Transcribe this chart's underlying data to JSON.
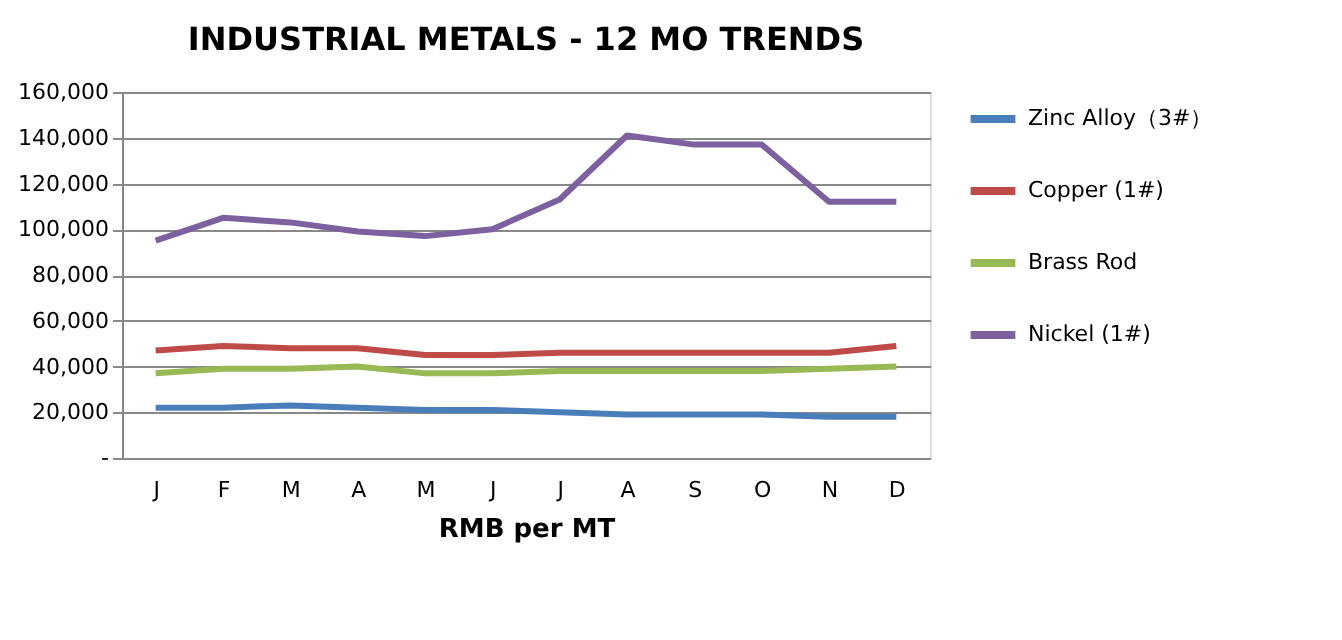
{
  "chart_data": {
    "type": "line",
    "title": "INDUSTRIAL METALS - 12 MO TRENDS",
    "xlabel": "RMB per MT",
    "categories": [
      "J",
      "F",
      "M",
      "A",
      "M",
      "J",
      "J",
      "A",
      "S",
      "O",
      "N",
      "D"
    ],
    "series": [
      {
        "name": "Zinc Alloy（3#）",
        "color": "#4a7ebb",
        "values": [
          22000,
          22000,
          23000,
          22000,
          21000,
          21000,
          20000,
          19000,
          19000,
          19000,
          18000,
          18000
        ]
      },
      {
        "name": "Copper (1#)",
        "color": "#be4b48",
        "values": [
          47000,
          49000,
          48000,
          48000,
          45000,
          45000,
          46000,
          46000,
          46000,
          46000,
          46000,
          49000
        ]
      },
      {
        "name": "Brass Rod",
        "color": "#98b954",
        "values": [
          37000,
          39000,
          39000,
          40000,
          37000,
          37000,
          38000,
          38000,
          38000,
          38000,
          39000,
          40000
        ]
      },
      {
        "name": "Nickel (1#)",
        "color": "#7d60a0",
        "values": [
          95000,
          105000,
          103000,
          99000,
          97000,
          100000,
          113000,
          141000,
          137000,
          137000,
          112000,
          112000
        ]
      }
    ],
    "ylim": [
      0,
      160000
    ],
    "yticks": [
      {
        "value": 0,
        "label": "-"
      },
      {
        "value": 20000,
        "label": "20,000"
      },
      {
        "value": 40000,
        "label": "40,000"
      },
      {
        "value": 60000,
        "label": "60,000"
      },
      {
        "value": 80000,
        "label": "80,000"
      },
      {
        "value": 100000,
        "label": "100,000"
      },
      {
        "value": 120000,
        "label": "120,000"
      },
      {
        "value": 140000,
        "label": "140,000"
      },
      {
        "value": 160000,
        "label": "160,000"
      }
    ],
    "grid": "y",
    "legend": "right",
    "marker": "none",
    "line_style": "solid"
  }
}
